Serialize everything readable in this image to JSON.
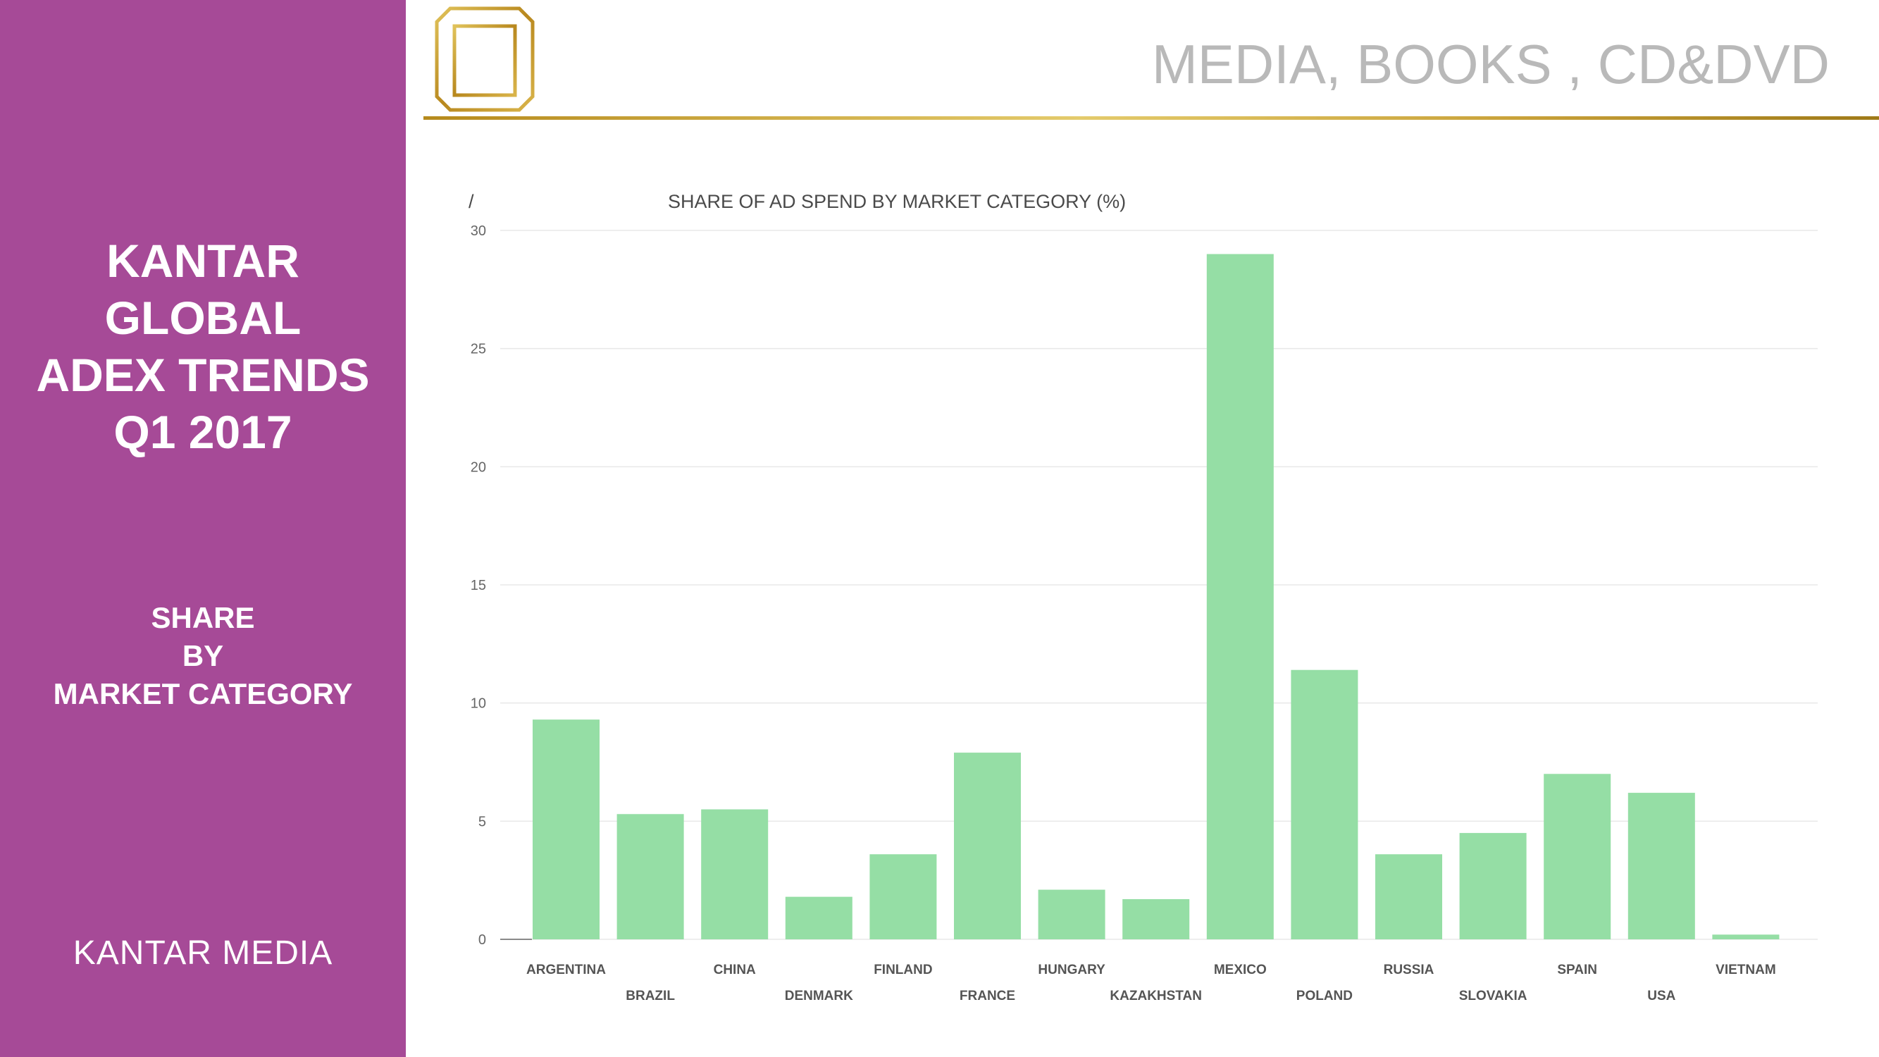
{
  "sidebar": {
    "title_lines": [
      "KANTAR",
      "GLOBAL",
      "ADEX TRENDS",
      "Q1 2017"
    ],
    "subtitle_lines": [
      "SHARE",
      "BY",
      "MARKET CATEGORY"
    ],
    "brand": "KANTAR MEDIA",
    "background_color": "#a64a97"
  },
  "header": {
    "title": "MEDIA, BOOKS , CD&DVD",
    "icon": "book-icon",
    "rule_color": "#c9a23a"
  },
  "chart_data": {
    "type": "bar",
    "title": "SHARE OF AD SPEND BY MARKET CATEGORY (%)",
    "corner_mark": "/",
    "categories": [
      "ARGENTINA",
      "BRAZIL",
      "CHINA",
      "DENMARK",
      "FINLAND",
      "FRANCE",
      "HUNGARY",
      "KAZAKHSTAN",
      "MEXICO",
      "POLAND",
      "RUSSIA",
      "SLOVAKIA",
      "SPAIN",
      "USA",
      "VIETNAM"
    ],
    "values": [
      9.3,
      5.3,
      5.5,
      1.8,
      3.6,
      7.9,
      2.1,
      1.7,
      29.0,
      11.4,
      3.6,
      4.5,
      7.0,
      6.2,
      0.2
    ],
    "ylim": [
      0,
      30
    ],
    "yticks": [
      "0",
      "5",
      "10",
      "15",
      "20",
      "25",
      "30"
    ],
    "xlabel": "",
    "ylabel": "",
    "grid": true,
    "legend": "none",
    "bar_color": "#95dea5"
  }
}
